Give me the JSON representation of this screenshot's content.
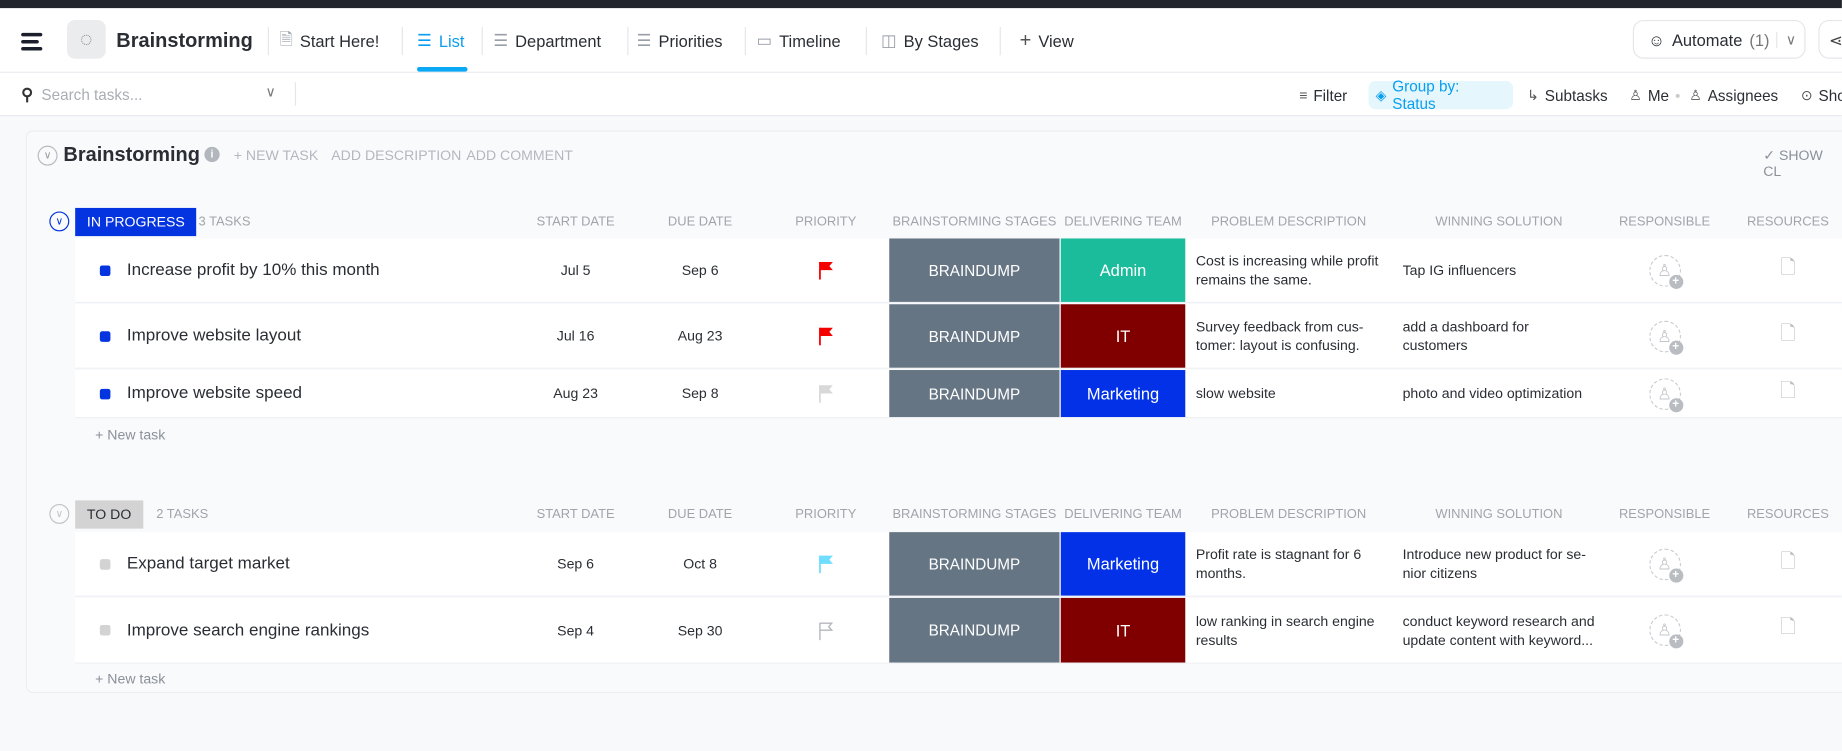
{
  "header": {
    "title": "Brainstorming",
    "tabs": [
      {
        "label": "Start Here!",
        "icon": "doc-icon"
      },
      {
        "label": "List",
        "icon": "list-icon",
        "active": true
      },
      {
        "label": "Department",
        "icon": "list-icon"
      },
      {
        "label": "Priorities",
        "icon": "list-icon"
      },
      {
        "label": "Timeline",
        "icon": "calendar-icon"
      },
      {
        "label": "By Stages",
        "icon": "board-icon"
      },
      {
        "label": "View",
        "icon": "plus-icon"
      }
    ],
    "automate_label": "Automate",
    "automate_count": "(1)"
  },
  "toolbar": {
    "search_placeholder": "Search tasks...",
    "filter": "Filter",
    "group_by": "Group by: Status",
    "subtasks": "Subtasks",
    "me": "Me",
    "assignees": "Assignees",
    "show": "Sho"
  },
  "list": {
    "title": "Brainstorming",
    "new_task": "+ NEW TASK",
    "add_description": "ADD DESCRIPTION",
    "add_comment": "ADD COMMENT",
    "show_closed": "✓ SHOW CL"
  },
  "columns": [
    "START DATE",
    "DUE DATE",
    "PRIORITY",
    "BRAINSTORMING STAGES",
    "DELIVERING TEAM",
    "PROBLEM DESCRIPTION",
    "WINNING SOLUTION",
    "RESPONSIBLE",
    "RESOURCES"
  ],
  "new_task_label": "+ New task",
  "colors": {
    "in_progress": "#0433e0",
    "todo": "#d3d3d3",
    "admin": "#1bbc9b",
    "it": "#800000",
    "marketing": "#0231e8",
    "stage": "#667584",
    "urgent": "#f50000",
    "low": "#d8d8d8",
    "normal": "#6fddff"
  },
  "groups": [
    {
      "status": "IN PROGRESS",
      "count": "3 TASKS",
      "tasks": [
        {
          "name": "Increase profit by 10% this month",
          "start": "Jul 5",
          "due": "Sep 6",
          "priority": "urgent",
          "stage": "BRAINDUMP",
          "team": "Admin",
          "team_color": "#1bbc9b",
          "problem": "Cost is increasing while profit remains the same.",
          "solution": "Tap IG influencers"
        },
        {
          "name": "Improve website layout",
          "start": "Jul 16",
          "due": "Aug 23",
          "priority": "urgent",
          "stage": "BRAINDUMP",
          "team": "IT",
          "team_color": "#800000",
          "problem": "Survey feedback from cus-tomer: layout is confusing.",
          "solution": "add a dashboard for customers"
        },
        {
          "name": "Improve website speed",
          "start": "Aug 23",
          "due": "Sep 8",
          "priority": "low",
          "stage": "BRAINDUMP",
          "team": "Marketing",
          "team_color": "#0231e8",
          "problem": "slow website",
          "solution": "photo and video optimization"
        }
      ]
    },
    {
      "status": "TO DO",
      "count": "2 TASKS",
      "tasks": [
        {
          "name": "Expand target market",
          "start": "Sep 6",
          "due": "Oct 8",
          "priority": "normal",
          "stage": "BRAINDUMP",
          "team": "Marketing",
          "team_color": "#0231e8",
          "problem": "Profit rate is stagnant for 6 months.",
          "solution": "Introduce new product for se-nior citizens"
        },
        {
          "name": "Improve search engine rankings",
          "start": "Sep 4",
          "due": "Sep 30",
          "priority": "none",
          "stage": "BRAINDUMP",
          "team": "IT",
          "team_color": "#800000",
          "problem": "low ranking in search engine results",
          "solution": "conduct keyword research and update content with keyword..."
        }
      ]
    }
  ]
}
